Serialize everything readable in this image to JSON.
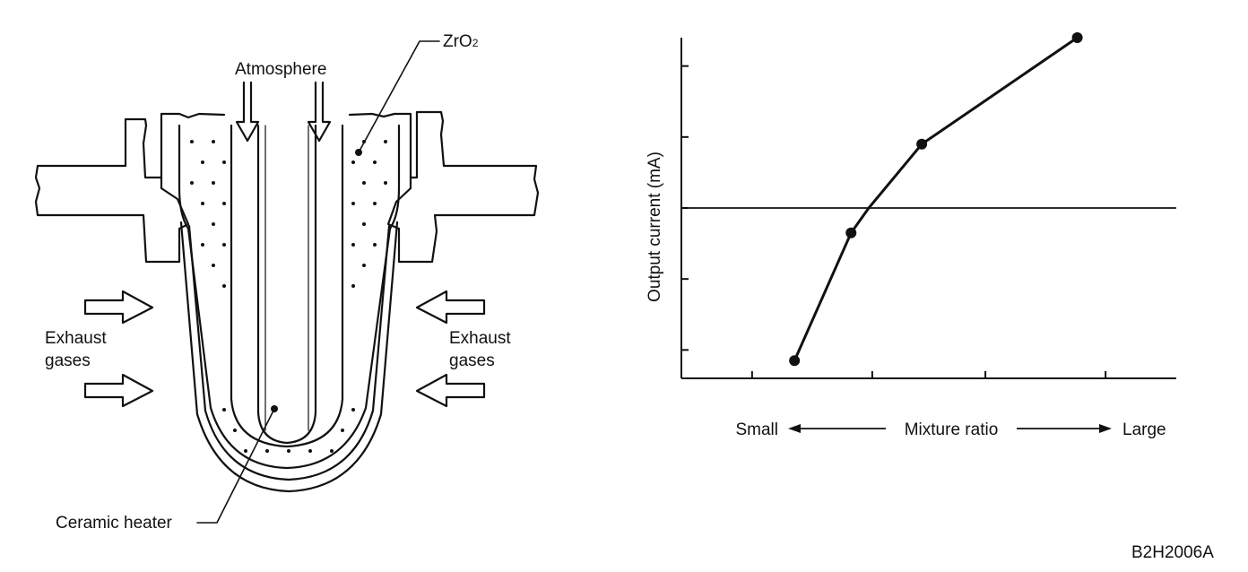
{
  "sensor_diagram": {
    "labels": {
      "zro2_prefix": "ZrO",
      "zro2_subscript": "2",
      "atmosphere": "Atmosphere",
      "exhaust_left_line1": "Exhaust",
      "exhaust_left_line2": "gases",
      "exhaust_right_line1": "Exhaust",
      "exhaust_right_line2": "gases",
      "ceramic_heater": "Ceramic heater"
    }
  },
  "chart_data": {
    "type": "line",
    "title": "",
    "ylabel": "Output current (mA)",
    "xlabel": "Mixture ratio",
    "x_left_label": "Small",
    "x_right_label": "Large",
    "xlim": [
      0,
      7
    ],
    "ylim": [
      0,
      4.8
    ],
    "x_ticks": [
      1,
      2.7,
      4.3,
      6
    ],
    "y_ticks": [
      0.4,
      1.4,
      2.4,
      3.4,
      4.4
    ],
    "reference_line_y": 2.4,
    "grid": false,
    "series": [
      {
        "values": [
          {
            "x": 1.6,
            "y": 0.25
          },
          {
            "x": 2.4,
            "y": 2.05
          },
          {
            "x": 2.65,
            "y": 2.4,
            "marker": false
          },
          {
            "x": 3.4,
            "y": 3.3
          },
          {
            "x": 5.6,
            "y": 4.8
          }
        ]
      }
    ]
  },
  "figure_code": "B2H2006A"
}
